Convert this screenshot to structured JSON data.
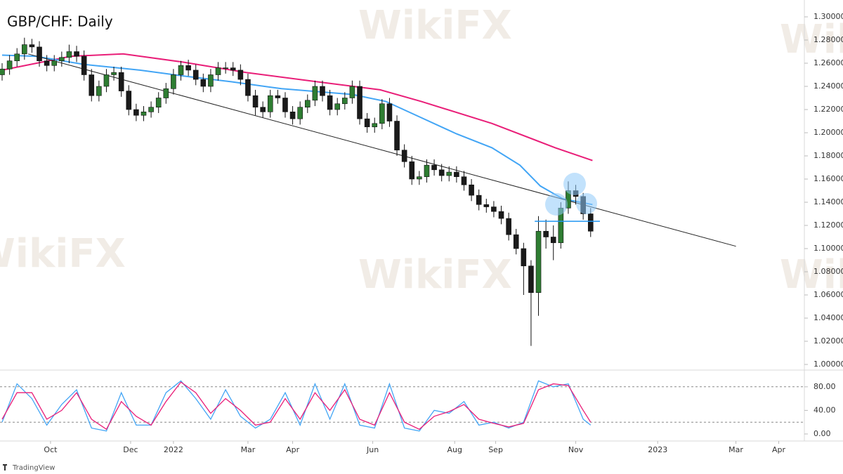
{
  "chart_data": [
    {
      "type": "candlestick",
      "title": "GBP/CHF: Daily",
      "x": [
        0,
        4,
        8,
        12,
        16,
        20,
        24,
        28,
        32,
        36,
        40,
        44,
        48,
        52,
        56,
        60,
        64,
        68,
        72,
        76,
        80,
        84,
        88,
        92,
        96,
        100,
        104,
        108,
        112,
        116,
        120,
        124,
        128,
        132,
        136,
        140,
        144,
        148,
        152,
        156,
        160,
        164,
        168,
        172,
        176,
        180,
        184,
        188,
        192,
        196,
        200,
        204,
        208,
        212,
        216,
        220,
        224,
        228,
        232,
        236,
        240,
        244,
        248,
        252,
        256,
        260,
        264,
        268,
        272,
        276,
        280,
        284,
        288,
        292,
        296,
        300,
        304,
        308,
        312,
        316
      ],
      "open": [
        1.25,
        1.255,
        1.262,
        1.268,
        1.276,
        1.274,
        1.262,
        1.258,
        1.262,
        1.265,
        1.27,
        1.266,
        1.25,
        1.232,
        1.24,
        1.25,
        1.252,
        1.236,
        1.22,
        1.215,
        1.218,
        1.222,
        1.23,
        1.238,
        1.25,
        1.258,
        1.254,
        1.246,
        1.24,
        1.25,
        1.256,
        1.256,
        1.254,
        1.246,
        1.232,
        1.222,
        1.218,
        1.232,
        1.23,
        1.218,
        1.212,
        1.222,
        1.228,
        1.24,
        1.232,
        1.22,
        1.225,
        1.23,
        1.24,
        1.212,
        1.205,
        1.208,
        1.225,
        1.21,
        1.185,
        1.175,
        1.16,
        1.162,
        1.172,
        1.168,
        1.163,
        1.166,
        1.162,
        1.155,
        1.146,
        1.138,
        1.136,
        1.132,
        1.126,
        1.112,
        1.1,
        1.085,
        1.062,
        1.115,
        1.11,
        1.105,
        1.135,
        1.15,
        1.145,
        1.13
      ],
      "high": [
        1.26,
        1.267,
        1.273,
        1.282,
        1.281,
        1.279,
        1.267,
        1.267,
        1.27,
        1.276,
        1.275,
        1.271,
        1.255,
        1.245,
        1.255,
        1.257,
        1.257,
        1.241,
        1.225,
        1.223,
        1.227,
        1.235,
        1.243,
        1.255,
        1.262,
        1.263,
        1.259,
        1.251,
        1.255,
        1.261,
        1.261,
        1.261,
        1.259,
        1.251,
        1.237,
        1.227,
        1.237,
        1.237,
        1.235,
        1.223,
        1.227,
        1.233,
        1.245,
        1.245,
        1.237,
        1.23,
        1.235,
        1.245,
        1.245,
        1.217,
        1.213,
        1.229,
        1.23,
        1.215,
        1.19,
        1.18,
        1.167,
        1.177,
        1.177,
        1.173,
        1.171,
        1.171,
        1.167,
        1.16,
        1.151,
        1.143,
        1.141,
        1.137,
        1.131,
        1.117,
        1.105,
        1.09,
        1.128,
        1.125,
        1.12,
        1.14,
        1.158,
        1.155,
        1.148,
        1.135
      ],
      "low": [
        1.245,
        1.25,
        1.257,
        1.263,
        1.269,
        1.257,
        1.253,
        1.253,
        1.257,
        1.26,
        1.261,
        1.245,
        1.227,
        1.227,
        1.235,
        1.245,
        1.231,
        1.215,
        1.21,
        1.21,
        1.213,
        1.217,
        1.225,
        1.233,
        1.245,
        1.249,
        1.241,
        1.235,
        1.235,
        1.245,
        1.251,
        1.249,
        1.241,
        1.227,
        1.215,
        1.213,
        1.213,
        1.225,
        1.213,
        1.207,
        1.207,
        1.217,
        1.223,
        1.227,
        1.215,
        1.215,
        1.22,
        1.225,
        1.207,
        1.2,
        1.2,
        1.203,
        1.205,
        1.18,
        1.17,
        1.155,
        1.155,
        1.157,
        1.163,
        1.158,
        1.158,
        1.157,
        1.15,
        1.141,
        1.133,
        1.131,
        1.127,
        1.121,
        1.107,
        1.095,
        1.06,
        1.016,
        1.042,
        1.1,
        1.09,
        1.1,
        1.13,
        1.138,
        1.125,
        1.11
      ],
      "close": [
        1.255,
        1.262,
        1.268,
        1.276,
        1.274,
        1.262,
        1.258,
        1.262,
        1.265,
        1.27,
        1.266,
        1.25,
        1.232,
        1.24,
        1.25,
        1.252,
        1.236,
        1.22,
        1.215,
        1.218,
        1.222,
        1.23,
        1.238,
        1.25,
        1.258,
        1.254,
        1.246,
        1.24,
        1.25,
        1.256,
        1.256,
        1.254,
        1.246,
        1.232,
        1.222,
        1.218,
        1.232,
        1.23,
        1.218,
        1.212,
        1.222,
        1.228,
        1.24,
        1.232,
        1.22,
        1.225,
        1.23,
        1.24,
        1.212,
        1.205,
        1.208,
        1.225,
        1.21,
        1.185,
        1.175,
        1.16,
        1.162,
        1.172,
        1.168,
        1.163,
        1.166,
        1.162,
        1.155,
        1.146,
        1.138,
        1.136,
        1.132,
        1.126,
        1.112,
        1.1,
        1.085,
        1.062,
        1.115,
        1.11,
        1.105,
        1.135,
        1.15,
        1.145,
        1.13,
        1.115
      ],
      "up_color": "#2e7d32",
      "down_color": "#1a1a1a",
      "overlays": [
        {
          "color": "#e91e78",
          "x": [
            0,
            37,
            65,
            97,
            131,
            169,
            203,
            225,
            263,
            297,
            317
          ],
          "values": [
            1.254,
            1.266,
            1.268,
            1.261,
            1.252,
            1.244,
            1.237,
            1.227,
            1.208,
            1.187,
            1.176
          ]
        },
        {
          "color": "#42a5f5",
          "x": [
            0,
            18,
            44,
            74,
            97,
            123,
            150,
            188,
            206,
            225,
            244,
            263,
            278,
            289,
            301,
            317
          ],
          "values": [
            1.267,
            1.266,
            1.259,
            1.254,
            1.249,
            1.244,
            1.238,
            1.233,
            1.227,
            1.213,
            1.199,
            1.187,
            1.172,
            1.154,
            1.143,
            1.138
          ]
        }
      ],
      "trendline": {
        "color": "#222222",
        "x": [
          14,
          394
        ],
        "values": [
          1.268,
          1.102
        ]
      },
      "level": {
        "color": "#2196f3",
        "x": [
          286,
          321
        ],
        "values": [
          1.1236,
          1.1236
        ]
      },
      "xlim": [
        0,
        430
      ],
      "ylim": [
        1.0,
        1.3
      ],
      "yticks": [
        {
          "value": 1.0,
          "label": "1.00000"
        },
        {
          "value": 1.02,
          "label": "1.02000"
        },
        {
          "value": 1.04,
          "label": "1.04000"
        },
        {
          "value": 1.06,
          "label": "1.06000"
        },
        {
          "value": 1.08,
          "label": "1.08000"
        },
        {
          "value": 1.1,
          "label": "1.10000"
        },
        {
          "value": 1.12,
          "label": "1.12000"
        },
        {
          "value": 1.14,
          "label": "1.14000"
        },
        {
          "value": 1.16,
          "label": "1.16000"
        },
        {
          "value": 1.18,
          "label": "1.18000"
        },
        {
          "value": 1.2,
          "label": "1.20000"
        },
        {
          "value": 1.22,
          "label": "1.22000"
        },
        {
          "value": 1.24,
          "label": "1.24000"
        },
        {
          "value": 1.26,
          "label": "1.26000"
        },
        {
          "value": 1.28,
          "label": "1.28000"
        },
        {
          "value": 1.3,
          "label": "1.30000"
        }
      ]
    },
    {
      "type": "line",
      "series": [
        {
          "color": "#42a5f5",
          "x": [
            0,
            8,
            16,
            24,
            32,
            40,
            48,
            56,
            64,
            72,
            80,
            88,
            96,
            104,
            112,
            120,
            128,
            136,
            144,
            152,
            160,
            168,
            176,
            184,
            192,
            200,
            208,
            216,
            224,
            232,
            240,
            248,
            256,
            264,
            272,
            280,
            288,
            296,
            304,
            312,
            316
          ],
          "values": [
            20,
            85,
            60,
            15,
            50,
            75,
            10,
            5,
            70,
            15,
            15,
            70,
            90,
            60,
            25,
            75,
            30,
            10,
            25,
            70,
            15,
            85,
            25,
            85,
            15,
            10,
            85,
            10,
            5,
            40,
            35,
            55,
            15,
            20,
            10,
            20,
            90,
            80,
            85,
            25,
            15
          ]
        },
        {
          "color": "#e91e78",
          "x": [
            0,
            8,
            16,
            24,
            32,
            40,
            48,
            56,
            64,
            72,
            80,
            88,
            96,
            104,
            112,
            120,
            128,
            136,
            144,
            152,
            160,
            168,
            176,
            184,
            192,
            200,
            208,
            216,
            224,
            232,
            240,
            248,
            256,
            264,
            272,
            280,
            288,
            296,
            304,
            312,
            316
          ],
          "values": [
            25,
            70,
            70,
            25,
            40,
            70,
            25,
            8,
            55,
            30,
            15,
            55,
            88,
            70,
            35,
            60,
            40,
            15,
            20,
            60,
            25,
            70,
            40,
            75,
            25,
            15,
            70,
            20,
            8,
            30,
            38,
            50,
            25,
            18,
            12,
            18,
            75,
            85,
            82,
            40,
            20
          ]
        }
      ],
      "levels": [
        20,
        80
      ],
      "xlim": [
        0,
        430
      ],
      "ylim": [
        0,
        100
      ],
      "yticks": [
        {
          "value": 0,
          "label": "0.00"
        },
        {
          "value": 40,
          "label": "40.00"
        },
        {
          "value": 80,
          "label": "80.00"
        }
      ],
      "xticks": [
        {
          "value": 26,
          "label": "Oct"
        },
        {
          "value": 69,
          "label": "Dec"
        },
        {
          "value": 92,
          "label": "2022"
        },
        {
          "value": 132,
          "label": "Mar"
        },
        {
          "value": 156,
          "label": "Apr"
        },
        {
          "value": 199,
          "label": "Jun"
        },
        {
          "value": 243,
          "label": "Aug"
        },
        {
          "value": 265,
          "label": "Sep"
        },
        {
          "value": 308,
          "label": "Nov"
        },
        {
          "value": 352,
          "label": "2023"
        },
        {
          "value": 394,
          "label": "Mar"
        },
        {
          "value": 417,
          "label": "Apr"
        }
      ]
    }
  ],
  "watermark": "WikiFX",
  "footer": "TradingView"
}
